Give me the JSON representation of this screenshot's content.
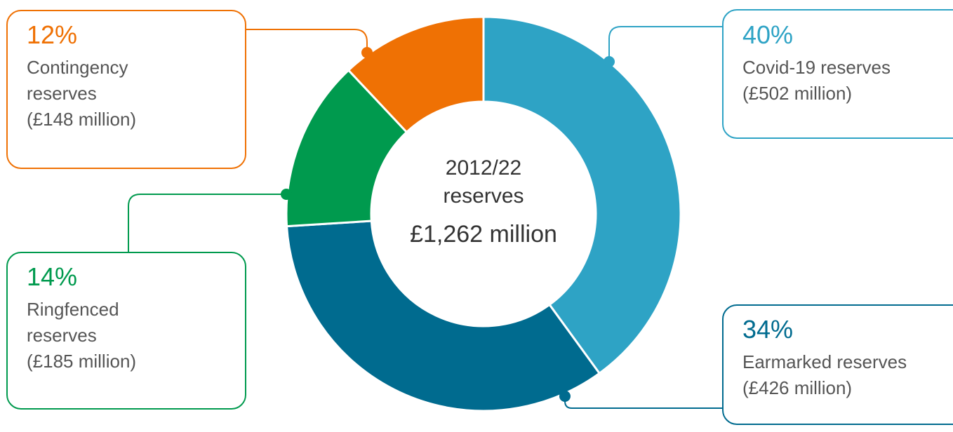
{
  "chart_data": {
    "type": "donut",
    "center_title": "2012/22 reserves",
    "center_label": "£1,262 million",
    "categories": [
      "Covid-19 reserves",
      "Earmarked reserves",
      "Ringfenced reserves",
      "Contingency reserves"
    ],
    "values": [
      40,
      34,
      14,
      12
    ],
    "value_labels": [
      "40%",
      "34%",
      "14%",
      "12%"
    ],
    "amount_labels": [
      "(£502 million)",
      "(£426 million)",
      "(£185 million)",
      "(£148 million)"
    ],
    "colors": [
      "#2ea3c5",
      "#006b8f",
      "#009a4e",
      "#ef7104"
    ]
  }
}
